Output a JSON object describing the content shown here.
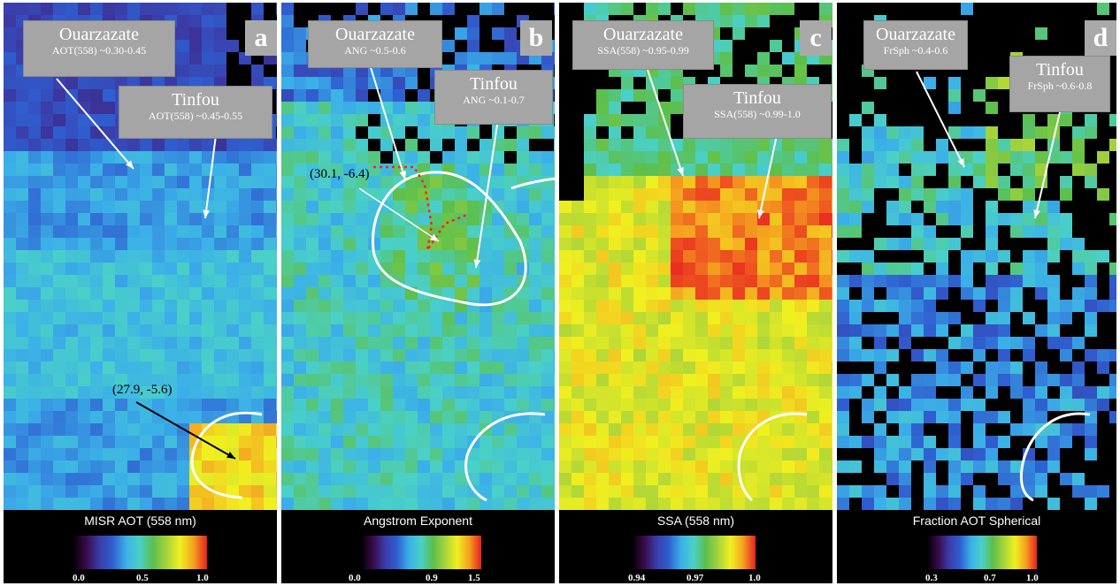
{
  "panels": [
    {
      "id": "a",
      "letter": "a",
      "colorbar_label": "MISR AOT (558 nm)",
      "ticks": [
        "0.0",
        "0.5",
        "1.0"
      ],
      "callouts": [
        {
          "title": "Ouarzazate",
          "value": "AOT(558) ~0.30-0.45"
        },
        {
          "title": "Tinfou",
          "value": "AOT(558) ~0.45-0.55"
        }
      ],
      "coordinate_label": "(27.9, -5.6)"
    },
    {
      "id": "b",
      "letter": "b",
      "colorbar_label": "Angstrom Exponent",
      "ticks": [
        "0.0",
        "0.9",
        "1.5"
      ],
      "callouts": [
        {
          "title": "Ouarzazate",
          "value": "ANG ~0.5-0.6"
        },
        {
          "title": "Tinfou",
          "value": "ANG ~0.1-0.7"
        }
      ],
      "coordinate_label": "(30.1, -6.4)"
    },
    {
      "id": "c",
      "letter": "c",
      "colorbar_label": "SSA (558 nm)",
      "ticks": [
        "0.94",
        "0.97",
        "1.0"
      ],
      "callouts": [
        {
          "title": "Ouarzazate",
          "value": "SSA(558) ~0.95-0.99"
        },
        {
          "title": "Tinfou",
          "value": "SSA(558) ~0.99-1.0"
        }
      ],
      "coordinate_label": ""
    },
    {
      "id": "d",
      "letter": "d",
      "colorbar_label": "Fraction AOT Spherical",
      "ticks": [
        "0.3",
        "0.7",
        "1.0"
      ],
      "callouts": [
        {
          "title": "Ouarzazate",
          "value": "FrSph ~0.4-0.6"
        },
        {
          "title": "Tinfou",
          "value": "FrSph ~0.6-0.8"
        }
      ],
      "coordinate_label": ""
    }
  ],
  "chart_data": [
    {
      "type": "heatmap",
      "title": "",
      "colorbar": "MISR AOT (558 nm)",
      "range": [
        0.0,
        1.0
      ],
      "ticks": [
        0.0,
        0.5,
        1.0
      ],
      "annotations": [
        "Ouarzazate AOT(558) ~0.30-0.45",
        "Tinfou AOT(558) ~0.45-0.55",
        "(27.9, -5.6)"
      ]
    },
    {
      "type": "heatmap",
      "title": "",
      "colorbar": "Angstrom Exponent",
      "range": [
        0.0,
        1.5
      ],
      "ticks": [
        0.0,
        0.9,
        1.5
      ],
      "annotations": [
        "Ouarzazate ANG ~0.5-0.6",
        "Tinfou ANG ~0.1-0.7",
        "(30.1, -6.4)"
      ]
    },
    {
      "type": "heatmap",
      "title": "",
      "colorbar": "SSA (558 nm)",
      "range": [
        0.94,
        1.0
      ],
      "ticks": [
        0.94,
        0.97,
        1.0
      ],
      "annotations": [
        "Ouarzazate SSA(558) ~0.95-0.99",
        "Tinfou SSA(558) ~0.99-1.0"
      ]
    },
    {
      "type": "heatmap",
      "title": "",
      "colorbar": "Fraction AOT Spherical",
      "range": [
        0.3,
        1.0
      ],
      "ticks": [
        0.3,
        0.7,
        1.0
      ],
      "annotations": [
        "Ouarzazate FrSph ~0.4-0.6",
        "Tinfou FrSph ~0.6-0.8"
      ]
    }
  ]
}
